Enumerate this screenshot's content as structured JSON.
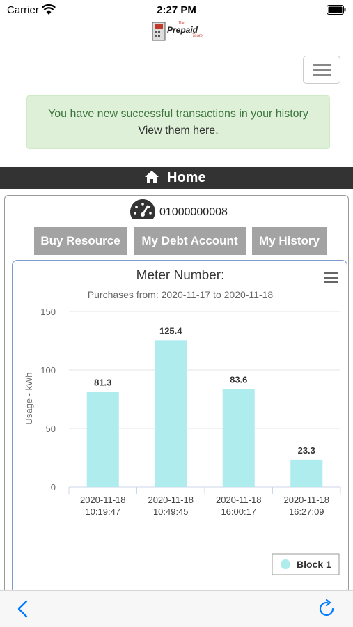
{
  "status_bar": {
    "carrier": "Carrier",
    "time": "2:27 PM"
  },
  "logo": {
    "sup": "The",
    "word": "Prepaid",
    "sub": "Team"
  },
  "alert": {
    "line1": "You have new successful transactions in your history",
    "line2": "View them here."
  },
  "home_bar": {
    "label": "Home"
  },
  "meter": {
    "number": "01000000008"
  },
  "buttons": {
    "buy": "Buy Resource",
    "debt": "My Debt Account",
    "history": "My History"
  },
  "colors": {
    "bar": "#aeeced",
    "button": "#a3a3a3",
    "alert_bg": "#dff0d8",
    "home_bar": "#333333",
    "ios_blue": "#007aff"
  },
  "chart_data": {
    "type": "bar",
    "title": "Meter Number:",
    "subtitle": "Purchases from: 2020-11-17 to 2020-11-18",
    "ylabel": "Usage - kWh",
    "ylim": [
      0,
      150
    ],
    "yticks": [
      0,
      50,
      100,
      150
    ],
    "categories": [
      [
        "2020-11-18",
        "10:19:47"
      ],
      [
        "2020-11-18",
        "10:49:45"
      ],
      [
        "2020-11-18",
        "16:00:17"
      ],
      [
        "2020-11-18",
        "16:27:09"
      ]
    ],
    "series": [
      {
        "name": "Block 1",
        "values": [
          81.3,
          125.4,
          83.6,
          23.3
        ]
      }
    ],
    "data_labels": [
      "81.3",
      "125.4",
      "83.6",
      "23.3"
    ],
    "grid": true,
    "legend": "bottom-right"
  }
}
